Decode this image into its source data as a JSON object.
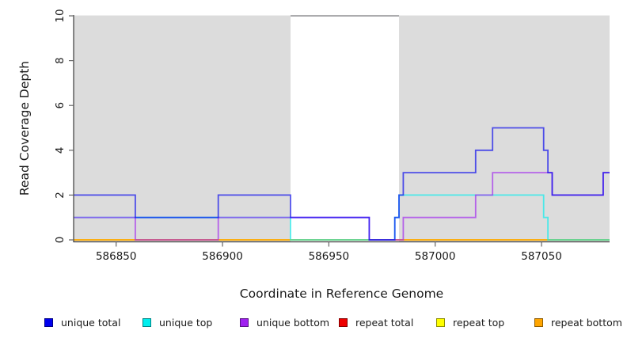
{
  "chart_data": {
    "type": "line",
    "subtype": "step-coverage-plot",
    "title": "",
    "xlabel": "Coordinate in Reference Genome",
    "ylabel": "Read Coverage Depth",
    "xlim": [
      586830,
      587082
    ],
    "ylim": [
      0,
      10
    ],
    "xticks": [
      "586850",
      "586900",
      "586950",
      "587000",
      "587050"
    ],
    "yticks": [
      "0",
      "2",
      "4",
      "6",
      "8",
      "10"
    ],
    "grid": false,
    "legend_position": "bottom",
    "shade_color": "#DCDCDC",
    "shaded_regions": [
      {
        "x0": 586830,
        "x1": 586932
      },
      {
        "x0": 586983,
        "x1": 587082
      }
    ],
    "cap_line": {
      "y": 10,
      "x0": 586932,
      "x1": 586983,
      "color": "#909094"
    },
    "line_opacity": 0.65,
    "draw_order": [
      "repeat total",
      "repeat top",
      "repeat bottom",
      "unique top",
      "unique bottom",
      "unique total"
    ],
    "series": [
      {
        "name": "unique total",
        "color": "#0000EE",
        "steps": [
          [
            586830,
            2
          ],
          [
            586859,
            1
          ],
          [
            586898,
            2
          ],
          [
            586932,
            1
          ],
          [
            586969,
            0
          ],
          [
            586981,
            1
          ],
          [
            586983,
            2
          ],
          [
            586985,
            3
          ],
          [
            587019,
            4
          ],
          [
            587027,
            5
          ],
          [
            587051,
            4
          ],
          [
            587053,
            3
          ],
          [
            587055,
            2
          ],
          [
            587079,
            3
          ]
        ]
      },
      {
        "name": "unique top",
        "color": "#00EEEE",
        "steps": [
          [
            586830,
            1
          ],
          [
            586932,
            0
          ],
          [
            586981,
            1
          ],
          [
            586983,
            2
          ],
          [
            587051,
            1
          ],
          [
            587053,
            0
          ]
        ]
      },
      {
        "name": "unique bottom",
        "color": "#A020F0",
        "steps": [
          [
            586830,
            1
          ],
          [
            586859,
            0
          ],
          [
            586898,
            1
          ],
          [
            586969,
            0
          ],
          [
            586985,
            1
          ],
          [
            587019,
            2
          ],
          [
            587027,
            3
          ],
          [
            587055,
            2
          ],
          [
            587079,
            3
          ]
        ]
      },
      {
        "name": "repeat total",
        "color": "#EE0000",
        "steps": [
          [
            586830,
            0
          ]
        ]
      },
      {
        "name": "repeat top",
        "color": "#FFFF00",
        "steps": [
          [
            586830,
            0
          ]
        ]
      },
      {
        "name": "repeat bottom",
        "color": "#FFA500",
        "steps": [
          [
            586830,
            0
          ]
        ]
      }
    ]
  }
}
